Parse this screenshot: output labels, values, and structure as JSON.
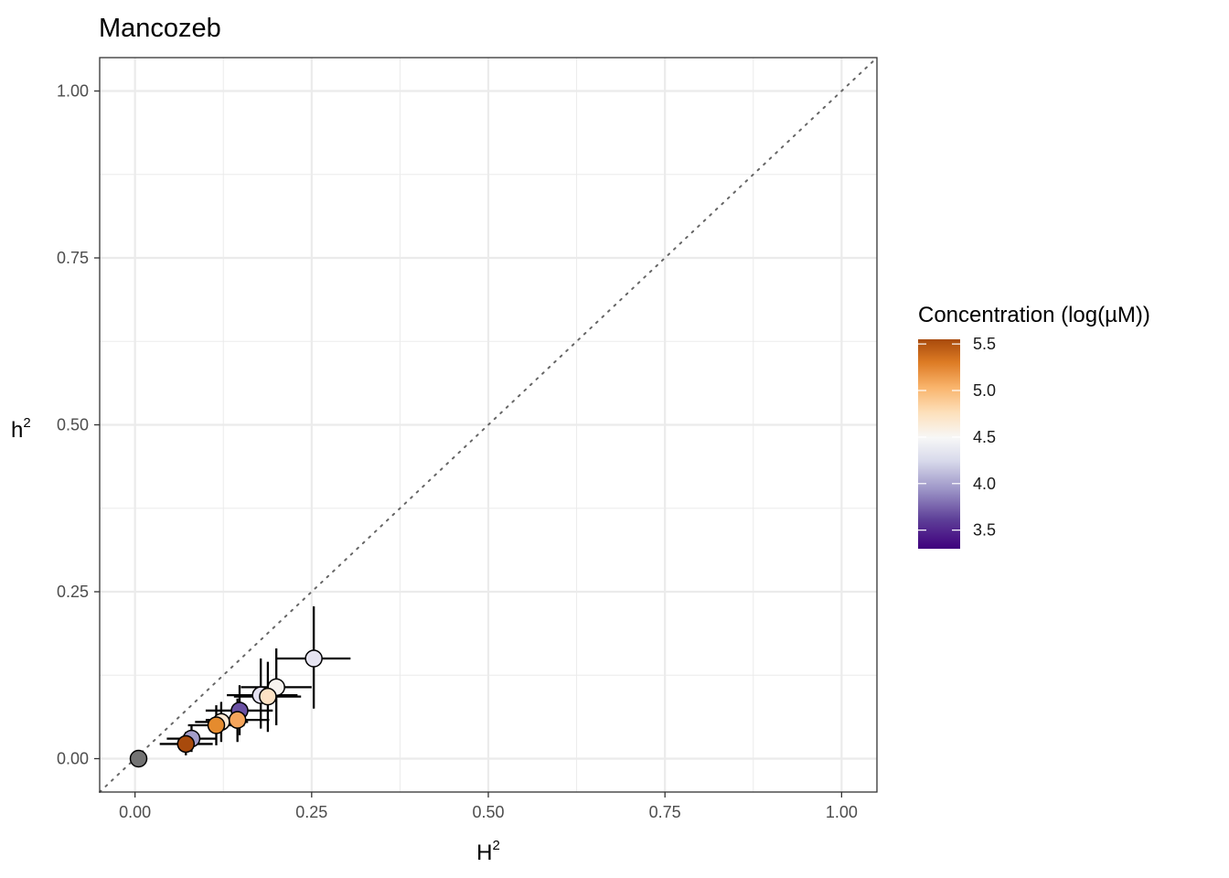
{
  "chart_data": {
    "type": "scatter",
    "title": "Mancozeb",
    "xlabel": "H",
    "xlabel_sup": "2",
    "ylabel": "h",
    "ylabel_sup": "2",
    "xlim": [
      -0.05,
      1.05
    ],
    "ylim": [
      -0.05,
      1.05
    ],
    "x_ticks": [
      0,
      0.25,
      0.5,
      0.75,
      1
    ],
    "x_tick_labels": [
      "0.00",
      "0.25",
      "0.50",
      "0.75",
      "1.00"
    ],
    "y_ticks": [
      0,
      0.25,
      0.5,
      0.75,
      1
    ],
    "y_tick_labels": [
      "0.00",
      "0.25",
      "0.50",
      "0.75",
      "1.00"
    ],
    "grid": true,
    "reference_line": {
      "slope": 1,
      "intercept": 0,
      "style": "dotted",
      "color": "#666666"
    },
    "legend": {
      "title": "Concentration (log(µM))",
      "placement": "right",
      "type": "colorbar",
      "range": [
        3.3,
        5.55
      ],
      "breaks": [
        3.5,
        4.0,
        4.5,
        5.0,
        5.5
      ],
      "break_labels": [
        "3.5",
        "4.0",
        "4.5",
        "5.0",
        "5.5"
      ],
      "colors": [
        "#3f007d",
        "#7b6fb2",
        "#d8daeb",
        "#f7f7f7",
        "#fddbb0",
        "#f3a35a",
        "#d8701e",
        "#a04008"
      ]
    },
    "points": [
      {
        "x": 0.005,
        "y": 0.0,
        "color": "#737373"
      },
      {
        "x": 0.08,
        "y": 0.03,
        "xerr": [
          0.045,
          0.115
        ],
        "yerr": [
          0.01,
          0.05
        ],
        "conc": 3.95,
        "color": "#a49dca"
      },
      {
        "x": 0.072,
        "y": 0.022,
        "xerr": [
          0.035,
          0.11
        ],
        "yerr": [
          0.005,
          0.04
        ],
        "conc": 5.5,
        "color": "#a84a0c"
      },
      {
        "x": 0.122,
        "y": 0.055,
        "xerr": [
          0.085,
          0.16
        ],
        "yerr": [
          0.025,
          0.085
        ],
        "conc": 4.55,
        "color": "#fde9d4"
      },
      {
        "x": 0.115,
        "y": 0.05,
        "xerr": [
          0.075,
          0.155
        ],
        "yerr": [
          0.02,
          0.08
        ],
        "conc": 5.1,
        "color": "#e58b2e"
      },
      {
        "x": 0.148,
        "y": 0.072,
        "xerr": [
          0.1,
          0.195
        ],
        "yerr": [
          0.035,
          0.11
        ],
        "conc": 3.4,
        "color": "#6a51a3"
      },
      {
        "x": 0.145,
        "y": 0.058,
        "xerr": [
          0.1,
          0.19
        ],
        "yerr": [
          0.025,
          0.09
        ],
        "conc": 4.95,
        "color": "#f5a55c"
      },
      {
        "x": 0.178,
        "y": 0.095,
        "xerr": [
          0.13,
          0.23
        ],
        "yerr": [
          0.045,
          0.15
        ],
        "conc": 4.1,
        "color": "#e4e1f0"
      },
      {
        "x": 0.2,
        "y": 0.107,
        "xerr": [
          0.15,
          0.25
        ],
        "yerr": [
          0.05,
          0.165
        ],
        "conc": 4.45,
        "color": "#f7f3ef"
      },
      {
        "x": 0.188,
        "y": 0.093,
        "xerr": [
          0.14,
          0.235
        ],
        "yerr": [
          0.04,
          0.145
        ],
        "conc": 4.7,
        "color": "#fde2c4"
      },
      {
        "x": 0.253,
        "y": 0.15,
        "xerr": [
          0.2,
          0.305
        ],
        "yerr": [
          0.075,
          0.228
        ],
        "conc": 4.05,
        "color": "#e6e4f1"
      }
    ]
  }
}
